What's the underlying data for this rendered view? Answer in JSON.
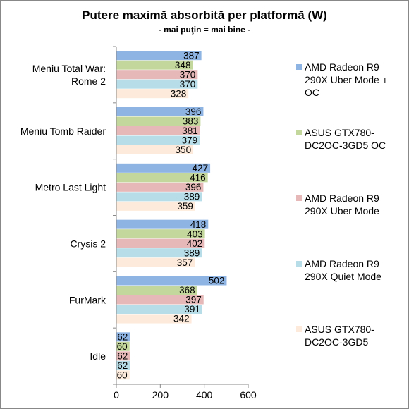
{
  "chart_data": {
    "type": "bar",
    "orientation": "horizontal",
    "title": "Putere maximă absorbită per platformă (W)",
    "subtitle": "- mai puţin = mai bine -",
    "categories": [
      [
        "Meniu Total War:",
        "Rome 2"
      ],
      [
        "Meniu Tomb Raider"
      ],
      [
        "Metro Last Light"
      ],
      [
        "Crysis 2"
      ],
      [
        "FurMark"
      ],
      [
        "Idle"
      ]
    ],
    "series": [
      {
        "name": [
          "AMD Radeon R9",
          "290X Uber Mode +",
          "OC"
        ],
        "color": "#8EB4E3",
        "values": [
          387,
          396,
          427,
          418,
          502,
          62
        ]
      },
      {
        "name": [
          "ASUS GTX780-",
          "DC2OC-3GD5 OC"
        ],
        "color": "#C3D69B",
        "values": [
          348,
          383,
          416,
          403,
          368,
          60
        ]
      },
      {
        "name": [
          "AMD Radeon R9",
          "290X Uber Mode"
        ],
        "color": "#E6B9B8",
        "values": [
          370,
          381,
          396,
          402,
          397,
          62
        ]
      },
      {
        "name": [
          "AMD Radeon R9",
          "290X Quiet Mode"
        ],
        "color": "#B7DEE8",
        "values": [
          370,
          379,
          389,
          389,
          391,
          62
        ]
      },
      {
        "name": [
          "ASUS GTX780-",
          "DC2OC-3GD5"
        ],
        "color": "#FDEADA",
        "values": [
          328,
          350,
          359,
          357,
          342,
          60
        ]
      }
    ],
    "xlim": [
      0,
      600
    ],
    "xticks": [
      0,
      200,
      400,
      600
    ],
    "grid": false,
    "legend_position": "right"
  }
}
